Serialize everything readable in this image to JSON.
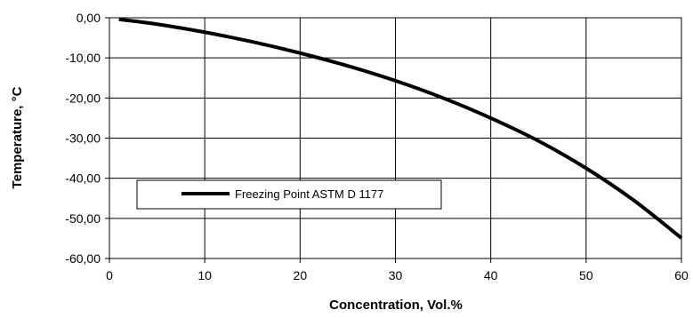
{
  "chart_data": {
    "type": "line",
    "title": "",
    "xlabel": "Concentration, Vol.%",
    "ylabel": "Temperature, °C",
    "xlim": [
      0,
      60
    ],
    "ylim": [
      -60,
      0
    ],
    "x_ticks": [
      "0",
      "10",
      "20",
      "30",
      "40",
      "50",
      "60"
    ],
    "y_ticks": [
      "0,00",
      "-10,00",
      "-20,00",
      "-30,00",
      "-40,00",
      "-50,00",
      "-60,00"
    ],
    "grid": true,
    "legend_position": "left-center",
    "series": [
      {
        "name": "Freezing Point ASTM D 1177",
        "color": "#000000",
        "x": [
          1,
          5,
          10,
          15,
          20,
          25,
          30,
          35,
          40,
          45,
          50,
          55,
          60
        ],
        "y": [
          -0.4,
          -1.6,
          -3.6,
          -6.0,
          -8.8,
          -12.0,
          -15.7,
          -20.0,
          -25.0,
          -30.7,
          -37.5,
          -45.5,
          -54.9
        ]
      }
    ]
  }
}
